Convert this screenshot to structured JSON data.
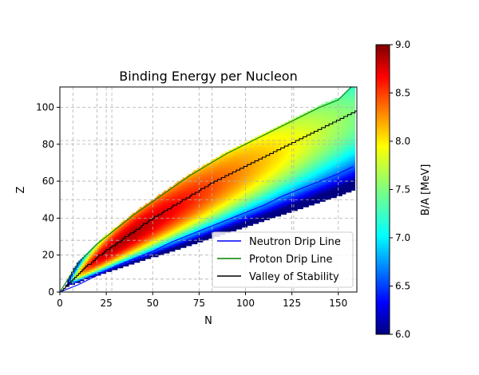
{
  "chart_data": {
    "type": "heatmap",
    "title": "Binding Energy per Nucleon",
    "xlabel": "N",
    "ylabel": "Z",
    "xlim": [
      0,
      160
    ],
    "ylim": [
      0,
      111
    ],
    "xticks": [
      0,
      25,
      50,
      75,
      100,
      125,
      150
    ],
    "yticks": [
      0,
      20,
      40,
      60,
      80,
      100
    ],
    "grid": true,
    "grid_extra_x": [
      7,
      20,
      28,
      50,
      82,
      126
    ],
    "grid_extra_y": [
      7,
      20,
      28,
      50,
      82
    ],
    "legend_position": "lower-right",
    "colorbar": {
      "label": "B/A [MeV]",
      "min": 6.0,
      "max": 9.0,
      "ticks": [
        6.0,
        6.5,
        7.0,
        7.5,
        8.0,
        8.5,
        9.0
      ],
      "tick_labels": [
        "6.0",
        "6.5",
        "7.0",
        "7.5",
        "8.0",
        "8.5",
        "9.0"
      ],
      "colormap": "jet"
    },
    "series": [
      {
        "name": "Neutron Drip Line",
        "color": "#0000ff",
        "x": [
          0,
          10,
          20,
          30,
          40,
          50,
          60,
          70,
          80,
          90,
          100,
          110,
          120,
          130,
          140,
          150,
          158
        ],
        "y": [
          0,
          4,
          9,
          14,
          18,
          22,
          27,
          31,
          35,
          39,
          43,
          47,
          52,
          56,
          60,
          64,
          68
        ]
      },
      {
        "name": "Proton Drip Line",
        "color": "#008000",
        "x": [
          0,
          10,
          20,
          30,
          40,
          50,
          60,
          70,
          80,
          90,
          100,
          110,
          120,
          130,
          140,
          150,
          158
        ],
        "y": [
          0,
          16,
          26,
          34,
          42,
          49,
          56,
          63,
          69,
          75,
          80,
          85,
          90,
          95,
          100,
          104,
          112
        ]
      },
      {
        "name": "Valley of Stability",
        "color": "#000000",
        "x": [
          1,
          10,
          20,
          30,
          40,
          50,
          60,
          70,
          80,
          90,
          100,
          110,
          120,
          130,
          140,
          150,
          160
        ],
        "y": [
          1,
          10,
          19,
          26,
          33,
          40,
          46,
          52,
          58,
          63,
          68,
          73,
          78,
          83,
          88,
          93,
          98
        ]
      }
    ]
  }
}
